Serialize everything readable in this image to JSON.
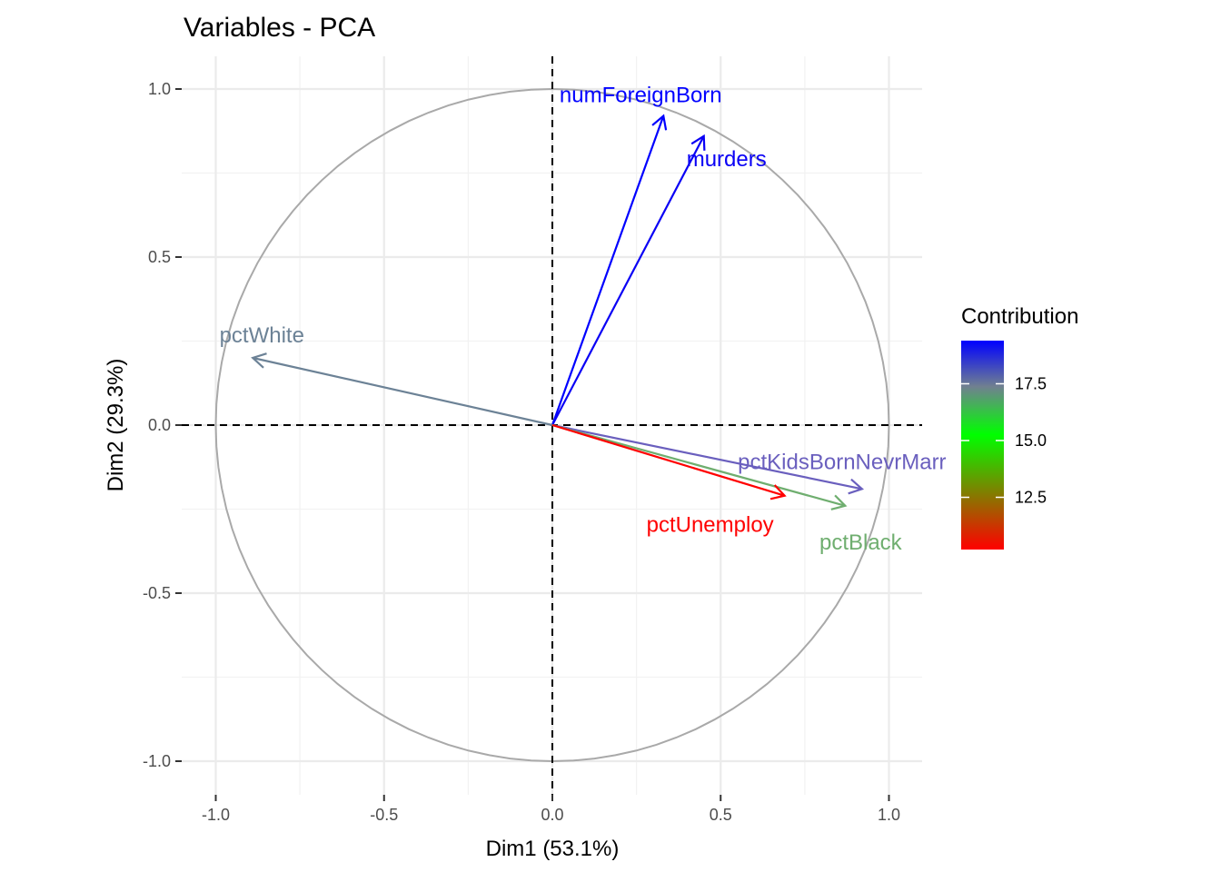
{
  "chart_data": {
    "type": "scatter",
    "subtype": "pca-variable-correlation-circle",
    "title": "Variables - PCA",
    "xlabel": "Dim1 (53.1%)",
    "ylabel": "Dim2 (29.3%)",
    "xlim": [
      -1.0,
      1.0
    ],
    "ylim": [
      -1.0,
      1.0
    ],
    "x_ticks": [
      {
        "value": -1.0,
        "label": "-1.0"
      },
      {
        "value": -0.5,
        "label": "-0.5"
      },
      {
        "value": 0.0,
        "label": "0.0"
      },
      {
        "value": 0.5,
        "label": "0.5"
      },
      {
        "value": 1.0,
        "label": "1.0"
      }
    ],
    "y_ticks": [
      {
        "value": -1.0,
        "label": "-1.0"
      },
      {
        "value": -0.5,
        "label": "-0.5"
      },
      {
        "value": 0.0,
        "label": "0.0"
      },
      {
        "value": 0.5,
        "label": "0.5"
      },
      {
        "value": 1.0,
        "label": "1.0"
      }
    ],
    "grid": true,
    "unit_circle": true,
    "reference_lines": {
      "x": 0,
      "y": 0,
      "style": "dashed"
    },
    "variables": [
      {
        "name": "numForeignBorn",
        "x": 0.33,
        "y": 0.92,
        "contribution": 19.4,
        "color": "#0000FF"
      },
      {
        "name": "murders",
        "x": 0.45,
        "y": 0.86,
        "contribution": 19.3,
        "color": "#0A00F5"
      },
      {
        "name": "pctWhite",
        "x": -0.89,
        "y": 0.2,
        "contribution": 17.6,
        "color": "#6C8296"
      },
      {
        "name": "pctKidsBornNevrMarr",
        "x": 0.92,
        "y": -0.19,
        "contribution": 18.3,
        "color": "#6A5FBE"
      },
      {
        "name": "pctBlack",
        "x": 0.87,
        "y": -0.24,
        "contribution": 16.2,
        "color": "#6FAE6F"
      },
      {
        "name": "pctUnemploy",
        "x": 0.69,
        "y": -0.21,
        "contribution": 10.2,
        "color": "#FF0000"
      }
    ],
    "legend": {
      "title": "Contribution",
      "placement": "right",
      "type": "gradient",
      "min": 10.2,
      "max": 19.4,
      "gradient_colors": [
        "#FF0000",
        "#00FF00",
        "#708090",
        "#0000FF"
      ],
      "gradient_stops": [
        0.0,
        0.55,
        0.78,
        1.0
      ],
      "ticks": [
        {
          "value": 12.5,
          "label": "12.5"
        },
        {
          "value": 15.0,
          "label": "15.0"
        },
        {
          "value": 17.5,
          "label": "17.5"
        }
      ]
    }
  }
}
